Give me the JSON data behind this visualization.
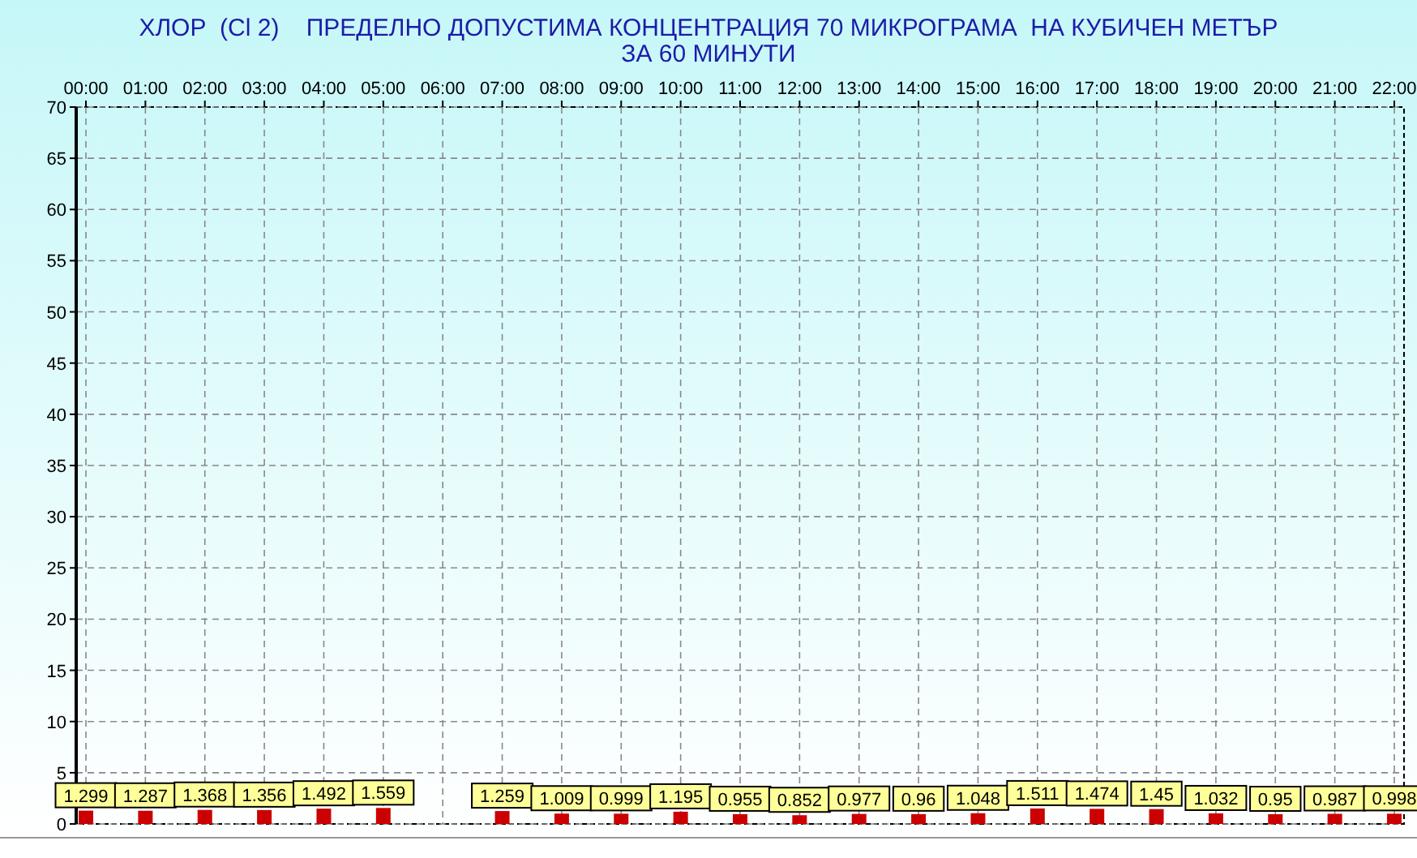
{
  "chart_data": {
    "type": "bar",
    "title": "ХЛОР  (Cl 2)    ПРЕДЕЛНО ДОПУСТИМА КОНЦЕНТРАЦИЯ 70 МИКРОГРАМА  НА КУБИЧЕН МЕТЪР",
    "subtitle": "ЗА 60 МИНУТИ",
    "categories": [
      "00:00",
      "01:00",
      "02:00",
      "03:00",
      "04:00",
      "05:00",
      "06:00",
      "07:00",
      "08:00",
      "09:00",
      "10:00",
      "11:00",
      "12:00",
      "13:00",
      "14:00",
      "15:00",
      "16:00",
      "17:00",
      "18:00",
      "19:00",
      "20:00",
      "21:00",
      "22:00"
    ],
    "values": [
      1.299,
      1.287,
      1.368,
      1.356,
      1.492,
      1.559,
      null,
      1.259,
      1.009,
      0.999,
      1.195,
      0.955,
      0.852,
      0.977,
      0.96,
      1.048,
      1.511,
      1.474,
      1.45,
      1.032,
      0.95,
      0.987,
      0.998
    ],
    "color": "#cc0000",
    "ylim": [
      0,
      70
    ],
    "yticks": [
      0,
      5,
      10,
      15,
      20,
      25,
      30,
      35,
      40,
      45,
      50,
      55,
      60,
      65,
      70
    ],
    "grid": true,
    "data_labels": true
  }
}
